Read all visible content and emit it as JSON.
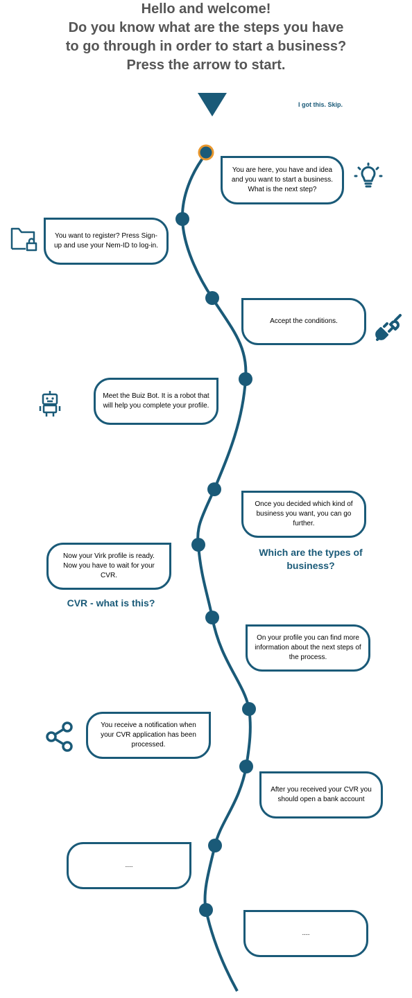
{
  "header": {
    "line1": "Hello and welcome!",
    "line2": "Do you know what are the steps you have",
    "line3": "to go through in order to start a business?",
    "line4": "Press the arrow to start."
  },
  "skip_label": "I got this. Skip.",
  "steps": [
    {
      "text": "You are here, you have and idea and you want to start a business. What is the next step?"
    },
    {
      "text": "You want to register? Press Sign-up and  use your Nem-ID to log-in."
    },
    {
      "text": "Accept the conditions."
    },
    {
      "text": "Meet the Buiz Bot. It is a robot that will help you complete your profile."
    },
    {
      "text": "Once you decided which kind of business you want, you can go further."
    },
    {
      "text": "Now your Virk profile is ready. Now you have to wait for your CVR."
    },
    {
      "text": "On your profile you can find more information about the next steps of the process."
    },
    {
      "text": "You receive a notification when your CVR application has been processed."
    },
    {
      "text": "After you received your CVR you should open a bank account"
    },
    {
      "text": "...."
    },
    {
      "text": "...."
    }
  ],
  "links": {
    "business_types": "Which are the types of business?",
    "cvr_info": "CVR - what is this?"
  },
  "icons": [
    "lightbulb-icon",
    "folder-lock-icon",
    "plug-icon",
    "robot-icon",
    "share-icon"
  ],
  "colors": {
    "primary": "#1a5a78",
    "current_marker": "#e8972e",
    "heading": "#555555"
  }
}
